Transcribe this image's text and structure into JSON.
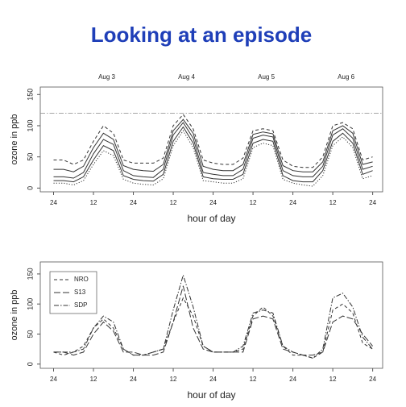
{
  "title": "Looking at an episode",
  "chart_data": [
    {
      "type": "line",
      "xlabel": "hour of day",
      "ylabel": "ozone in ppb",
      "annotations": [
        {
          "text": "Aug 3",
          "x": 16
        },
        {
          "text": "Aug 4",
          "x": 40
        },
        {
          "text": "Aug 5",
          "x": 64
        },
        {
          "text": "Aug 6",
          "x": 88
        }
      ],
      "hline": 120,
      "x": [
        0,
        3,
        6,
        9,
        12,
        15,
        18,
        21,
        24,
        27,
        30,
        33,
        36,
        39,
        42,
        45,
        48,
        51,
        54,
        57,
        60,
        63,
        66,
        69,
        72,
        75,
        78,
        81,
        84,
        87,
        90,
        93,
        96
      ],
      "xlim": [
        -4,
        99
      ],
      "xticks": [
        {
          "value": 0,
          "label": "24"
        },
        12,
        24,
        {
          "value": 36,
          "label": "12"
        },
        {
          "value": 48,
          "label": "24"
        },
        {
          "value": 60,
          "label": "12"
        },
        {
          "value": 72,
          "label": "24"
        },
        {
          "value": 84,
          "label": "12"
        },
        {
          "value": 96,
          "label": "24"
        }
      ],
      "ylim": [
        -6,
        162
      ],
      "yticks": [
        0,
        50,
        100,
        150
      ],
      "series": [
        {
          "color": "#333333",
          "style": "dashed",
          "values": [
            45,
            45,
            38,
            45,
            75,
            100,
            88,
            45,
            40,
            40,
            40,
            48,
            100,
            118,
            95,
            45,
            40,
            38,
            38,
            48,
            92,
            95,
            92,
            45,
            35,
            33,
            33,
            50,
            100,
            105,
            95,
            45,
            50
          ]
        },
        {
          "color": "#333333",
          "style": "solid",
          "values": [
            30,
            30,
            26,
            35,
            65,
            88,
            78,
            36,
            30,
            28,
            27,
            38,
            92,
            110,
            88,
            35,
            30,
            28,
            28,
            38,
            86,
            90,
            87,
            36,
            28,
            26,
            26,
            42,
            92,
            100,
            88,
            38,
            42
          ]
        },
        {
          "color": "#333333",
          "style": "solid",
          "values": [
            18,
            18,
            16,
            25,
            55,
            78,
            70,
            28,
            20,
            18,
            17,
            30,
            85,
            105,
            80,
            25,
            22,
            20,
            20,
            30,
            80,
            85,
            82,
            28,
            20,
            18,
            18,
            35,
            85,
            95,
            80,
            30,
            35
          ]
        },
        {
          "color": "#333333",
          "style": "solid",
          "values": [
            12,
            12,
            10,
            18,
            45,
            68,
            60,
            20,
            14,
            12,
            11,
            22,
            75,
            98,
            72,
            18,
            15,
            14,
            14,
            22,
            72,
            78,
            75,
            20,
            12,
            10,
            10,
            28,
            75,
            88,
            72,
            22,
            28
          ]
        },
        {
          "color": "#333333",
          "style": "dotted",
          "values": [
            8,
            8,
            5,
            12,
            38,
            60,
            52,
            14,
            8,
            6,
            5,
            15,
            68,
            92,
            65,
            12,
            10,
            8,
            8,
            15,
            65,
            72,
            68,
            14,
            8,
            5,
            3,
            20,
            68,
            82,
            65,
            15,
            20
          ]
        }
      ]
    },
    {
      "type": "line",
      "xlabel": "hour of day",
      "ylabel": "ozone in ppb",
      "legend": "upper left",
      "x": [
        0,
        3,
        6,
        9,
        12,
        15,
        18,
        21,
        24,
        27,
        30,
        33,
        36,
        39,
        42,
        45,
        48,
        51,
        54,
        57,
        60,
        63,
        66,
        69,
        72,
        75,
        78,
        81,
        84,
        87,
        90,
        93,
        96
      ],
      "xlim": [
        -4,
        99
      ],
      "xticks": [
        {
          "value": 0,
          "label": "24"
        },
        12,
        24,
        {
          "value": 36,
          "label": "12"
        },
        {
          "value": 48,
          "label": "24"
        },
        {
          "value": 60,
          "label": "12"
        },
        {
          "value": 72,
          "label": "24"
        },
        {
          "value": 84,
          "label": "12"
        },
        {
          "value": 96,
          "label": "24"
        }
      ],
      "ylim": [
        -7,
        170
      ],
      "yticks": [
        0,
        50,
        100,
        150
      ],
      "series": [
        {
          "name": "NRO",
          "color": "#333333",
          "style": "dashed",
          "values": [
            20,
            15,
            20,
            30,
            60,
            75,
            60,
            25,
            15,
            15,
            20,
            25,
            70,
            110,
            80,
            30,
            20,
            20,
            20,
            25,
            80,
            95,
            80,
            30,
            15,
            15,
            10,
            20,
            90,
            100,
            85,
            35,
            25
          ]
        },
        {
          "name": "S13",
          "color": "#333333",
          "style": "longdash",
          "values": [
            20,
            20,
            15,
            20,
            50,
            70,
            55,
            20,
            20,
            15,
            15,
            20,
            70,
            130,
            60,
            25,
            20,
            20,
            20,
            20,
            75,
            80,
            75,
            25,
            20,
            15,
            15,
            20,
            70,
            80,
            75,
            50,
            30
          ]
        },
        {
          "name": "SDP",
          "color": "#333333",
          "style": "dashdot",
          "values": [
            20,
            20,
            20,
            25,
            60,
            80,
            70,
            25,
            15,
            15,
            20,
            25,
            90,
            148,
            95,
            30,
            20,
            20,
            20,
            30,
            85,
            90,
            85,
            30,
            20,
            15,
            10,
            25,
            110,
            118,
            95,
            45,
            25
          ]
        }
      ]
    }
  ]
}
